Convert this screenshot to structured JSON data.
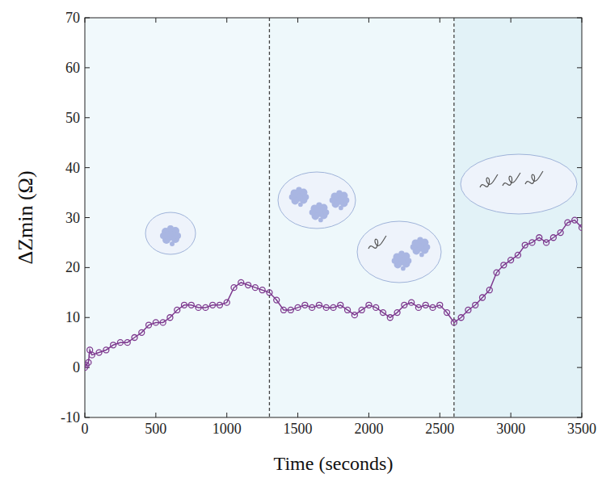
{
  "chart_data": {
    "type": "line",
    "x_label": "Time (seconds)",
    "y_label": "ΔZmin (Ω)",
    "x": [
      0,
      10,
      25,
      35,
      50,
      100,
      150,
      200,
      250,
      300,
      350,
      400,
      450,
      500,
      550,
      600,
      650,
      700,
      750,
      800,
      850,
      900,
      950,
      1000,
      1050,
      1100,
      1150,
      1200,
      1250,
      1300,
      1350,
      1400,
      1450,
      1500,
      1550,
      1600,
      1650,
      1700,
      1750,
      1800,
      1850,
      1900,
      1950,
      2000,
      2050,
      2100,
      2150,
      2200,
      2250,
      2300,
      2350,
      2400,
      2450,
      2500,
      2550,
      2600,
      2650,
      2700,
      2750,
      2800,
      2850,
      2900,
      2950,
      3000,
      3050,
      3100,
      3150,
      3200,
      3250,
      3300,
      3350,
      3400,
      3450,
      3500
    ],
    "values": [
      0,
      0.5,
      1,
      3.5,
      2.5,
      3,
      3.5,
      4.5,
      5,
      5,
      6,
      7,
      8.5,
      9,
      9,
      10,
      11.5,
      12.5,
      12.5,
      12,
      12,
      12.5,
      12.5,
      13,
      16,
      17,
      16.5,
      16,
      15.5,
      15,
      13.5,
      11.5,
      11.5,
      12,
      12.5,
      12,
      12.5,
      12,
      12,
      12.5,
      11.5,
      10.5,
      11.5,
      12.5,
      12,
      11,
      10,
      11,
      12.5,
      13,
      12,
      12.5,
      12,
      12.5,
      11,
      9,
      10,
      11.5,
      12.5,
      14,
      15.5,
      19,
      20.5,
      21.5,
      22.5,
      24.5,
      25,
      26,
      25,
      26,
      27,
      29,
      29.5,
      28
    ],
    "color": "#7e3a8f",
    "marker": "circle",
    "xlim": [
      0,
      3500
    ],
    "xticks": [
      0,
      500,
      1000,
      1500,
      2000,
      2500,
      3000,
      3500
    ],
    "ylim": [
      -10,
      70
    ],
    "yticks": [
      -10,
      0,
      10,
      20,
      30,
      40,
      50,
      60,
      70
    ],
    "vlines": [
      1300,
      2600
    ],
    "grid": false
  }
}
